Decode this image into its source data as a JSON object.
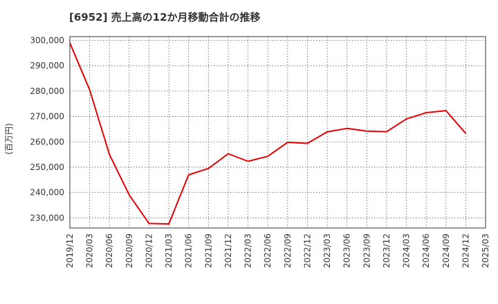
{
  "chart_data": {
    "type": "line",
    "title": "[6952]  売上高の12か月移動合計の推移",
    "xlabel": "",
    "ylabel": "(百万円)",
    "ylim": [
      226000,
      301500
    ],
    "yticks": [
      230000,
      240000,
      250000,
      260000,
      270000,
      280000,
      290000,
      300000
    ],
    "ytick_labels": [
      "230,000",
      "240,000",
      "250,000",
      "260,000",
      "270,000",
      "280,000",
      "290,000",
      "300,000"
    ],
    "categories": [
      "2019/12",
      "2020/03",
      "2020/06",
      "2020/09",
      "2020/12",
      "2021/03",
      "2021/06",
      "2021/09",
      "2021/12",
      "2022/03",
      "2022/06",
      "2022/09",
      "2022/12",
      "2023/03",
      "2023/06",
      "2023/09",
      "2023/12",
      "2024/03",
      "2024/06",
      "2024/09",
      "2024/12",
      "2025/03"
    ],
    "grid": true,
    "series": [
      {
        "name": "売上高の12か月移動合計",
        "color": "#e60000",
        "values": [
          299000,
          280500,
          255000,
          239000,
          227800,
          227600,
          247000,
          249500,
          255300,
          252300,
          254300,
          259800,
          259400,
          263900,
          265300,
          264200,
          264000,
          269000,
          271500,
          272300,
          263300,
          null
        ]
      }
    ]
  }
}
